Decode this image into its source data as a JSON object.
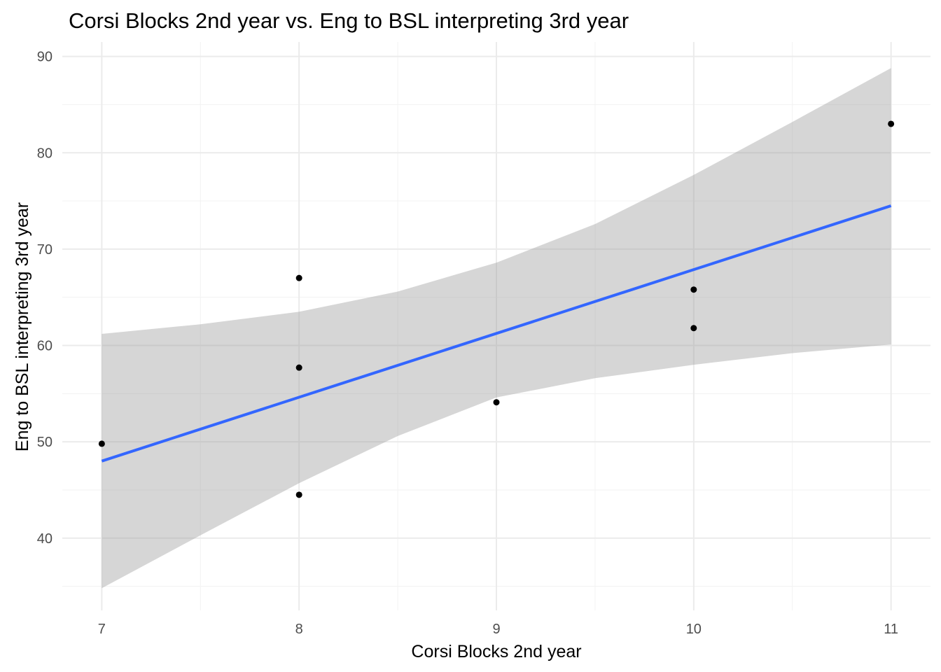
{
  "chart_data": {
    "type": "scatter",
    "title": "Corsi Blocks 2nd year vs. Eng to BSL interpreting 3rd year",
    "xlabel": "Corsi Blocks 2nd year",
    "ylabel": "Eng to BSL interpreting 3rd year",
    "xlim": [
      6.8,
      11.2
    ],
    "ylim": [
      32.5,
      91.5
    ],
    "x_ticks": [
      7,
      8,
      9,
      10,
      11
    ],
    "x_tick_labels": [
      "7",
      "8",
      "9",
      "10",
      "11"
    ],
    "y_ticks": [
      40,
      50,
      60,
      70,
      80,
      90
    ],
    "y_tick_labels": [
      "40",
      "50",
      "60",
      "70",
      "80",
      "90"
    ],
    "x_minor_ticks": [
      7.5,
      8.5,
      9.5,
      10.5
    ],
    "y_minor_ticks": [
      35,
      45,
      55,
      65,
      75,
      85
    ],
    "grid": true,
    "points": [
      {
        "x": 7,
        "y": 49.8
      },
      {
        "x": 8,
        "y": 67.0
      },
      {
        "x": 8,
        "y": 57.7
      },
      {
        "x": 8,
        "y": 44.5
      },
      {
        "x": 9,
        "y": 54.1
      },
      {
        "x": 10,
        "y": 65.8
      },
      {
        "x": 10,
        "y": 61.8
      },
      {
        "x": 11,
        "y": 83.0
      }
    ],
    "fit_line": {
      "x": [
        7,
        11
      ],
      "y": [
        48.0,
        74.5
      ]
    },
    "confidence_band": {
      "x": [
        7,
        7.5,
        8,
        8.5,
        9,
        9.5,
        10,
        10.5,
        11
      ],
      "lower": [
        34.8,
        40.3,
        45.7,
        50.6,
        54.6,
        56.6,
        58.0,
        59.2,
        60.1
      ],
      "upper": [
        61.2,
        62.2,
        63.5,
        65.6,
        68.6,
        72.6,
        77.7,
        83.2,
        88.8
      ]
    },
    "colors": {
      "background": "#ffffff",
      "grid_major": "#ebebeb",
      "grid_minor": "#f3f3f3",
      "points": "#000000",
      "fit_line": "#3366ff",
      "confidence_band": "#999999"
    }
  }
}
